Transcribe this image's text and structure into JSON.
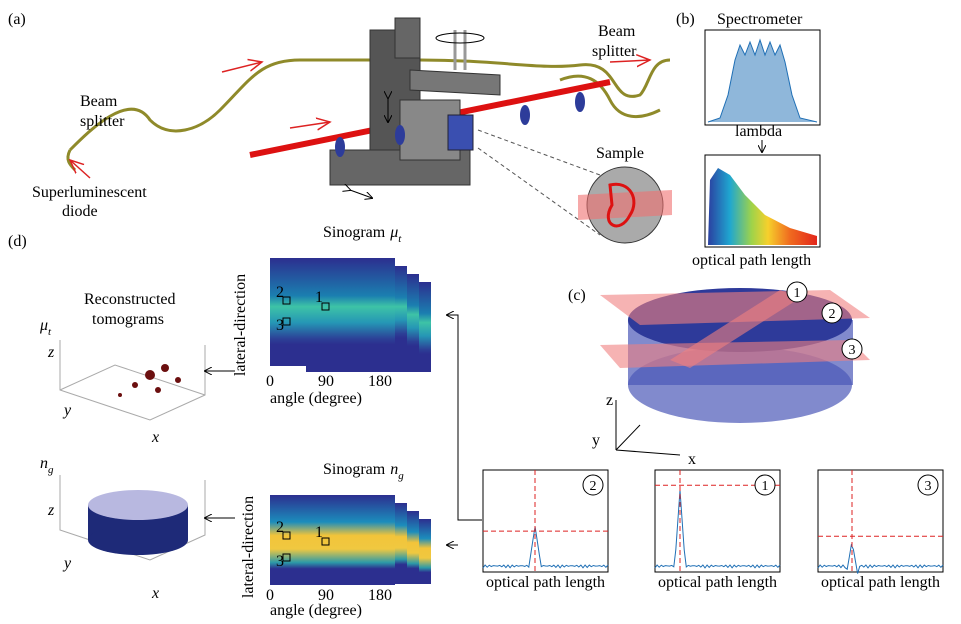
{
  "panel_a": {
    "label": "(a)",
    "source": [
      "Superluminescent",
      "diode"
    ],
    "splitter_left": [
      "Beam",
      "splitter"
    ],
    "splitter_right": [
      "Beam",
      "splitter"
    ],
    "sample": "Sample"
  },
  "panel_b": {
    "label": "(b)",
    "title": "Spectrometer",
    "top_xlabel": "lambda",
    "bottom_xlabel": "optical path length"
  },
  "panel_d": {
    "label": "(d)",
    "recon_title": [
      "Reconstructed",
      "tomograms"
    ],
    "recon_mu": {
      "symbol": "μ",
      "sub": "t"
    },
    "recon_ng": {
      "symbol": "n",
      "sub": "g"
    },
    "axes": {
      "x": "x",
      "y": "y",
      "z": "z"
    },
    "sino_mu": {
      "title": "Sinogram",
      "symbol": "μ",
      "sub": "t"
    },
    "sino_ng": {
      "title": "Sinogram",
      "symbol": "n",
      "sub": "g"
    },
    "ylabel": "lateral-direction",
    "xlabel": "angle (degree)",
    "xticks": [
      0,
      90,
      180
    ],
    "points": [
      "1",
      "2",
      "3"
    ]
  },
  "panel_c": {
    "label": "(c)",
    "planes": [
      "1",
      "2",
      "3"
    ],
    "axes": {
      "x": "x",
      "y": "y",
      "z": "z"
    },
    "plot_xlabel": "optical path length"
  }
}
